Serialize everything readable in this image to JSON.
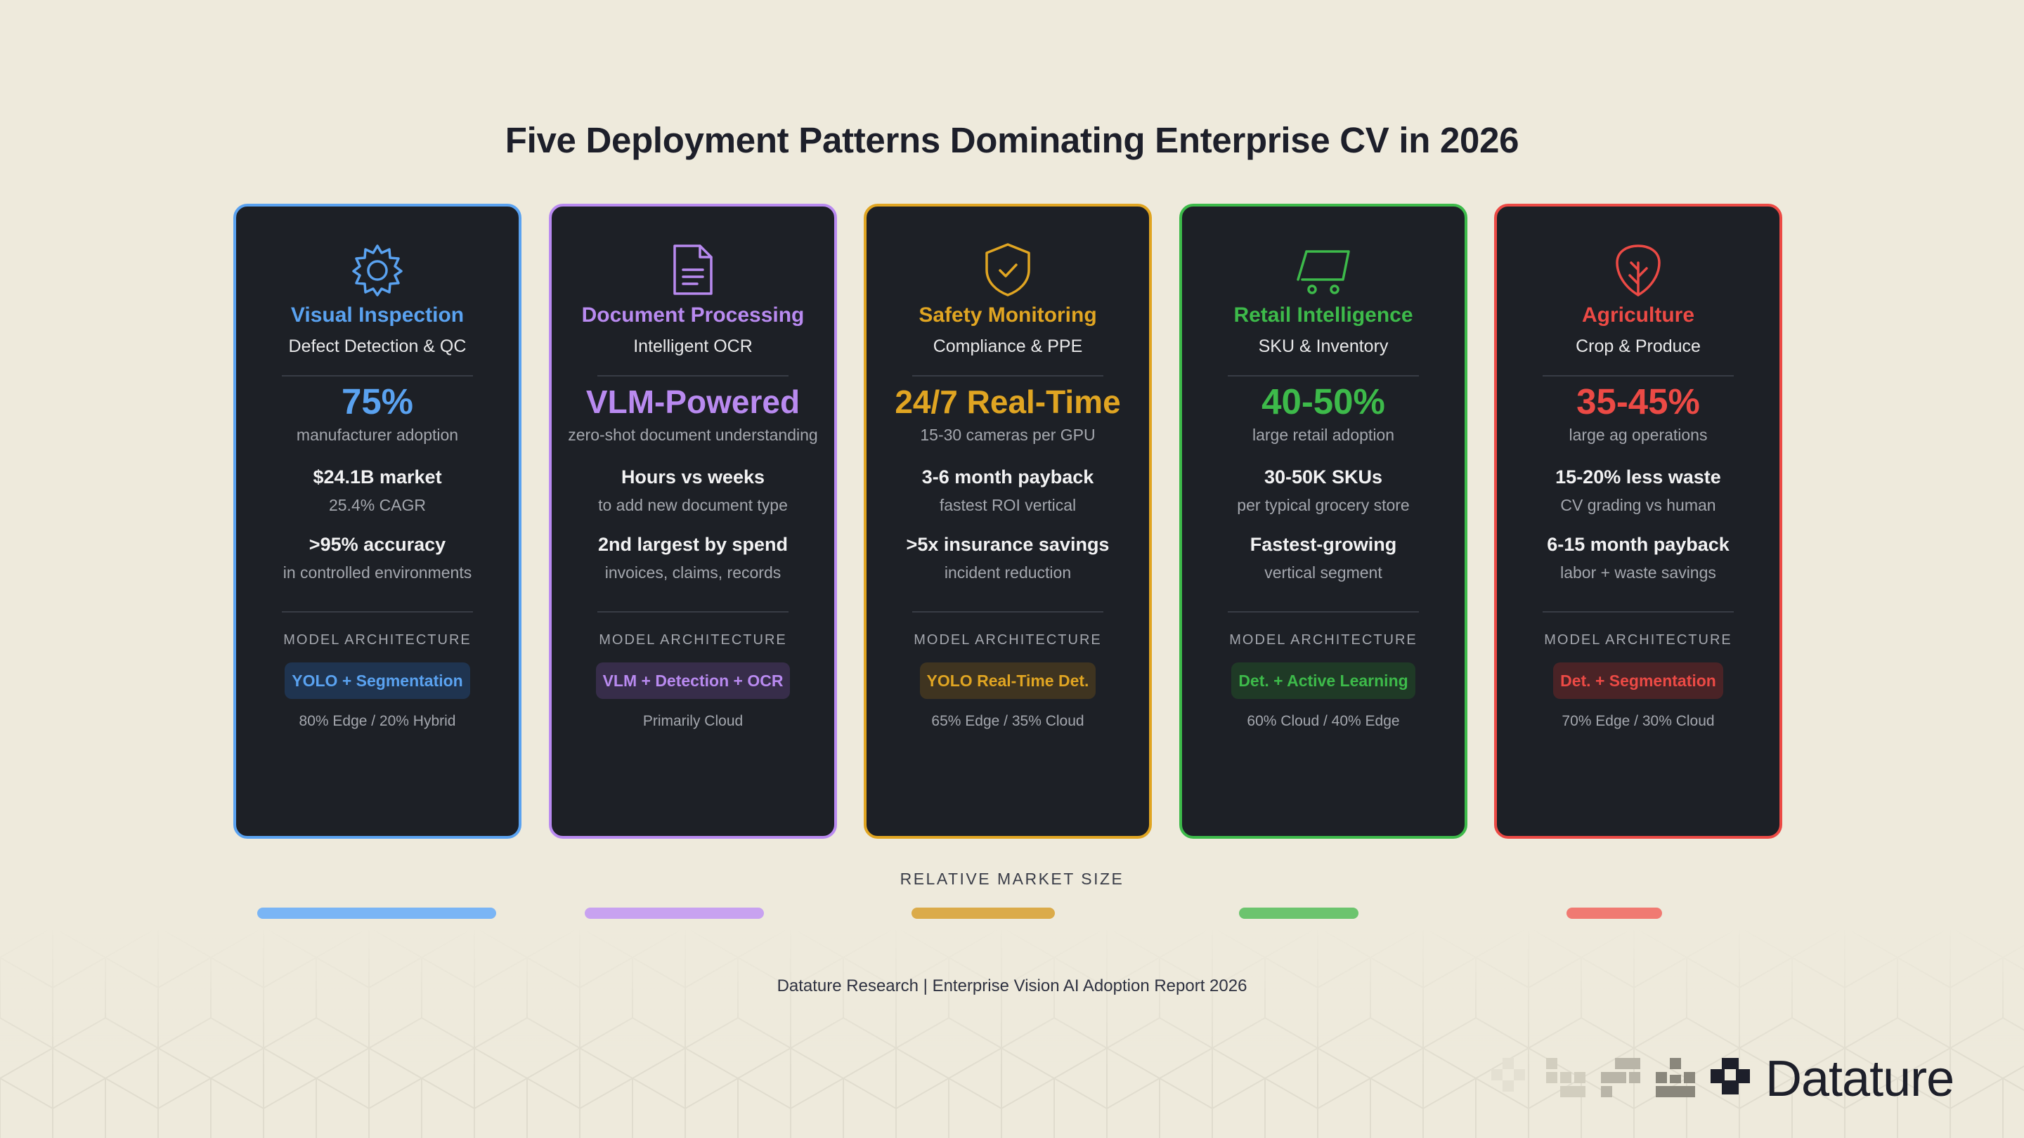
{
  "title": "Five Deployment Patterns Dominating Enterprise CV in 2026",
  "cards": [
    {
      "title": "Visual Inspection",
      "subtitle": "Defect Detection & QC",
      "big": "75%",
      "big_sub": "manufacturer adoption",
      "stat1": "$24.1B market",
      "stat1_sub": "25.4% CAGR",
      "stat2": ">95% accuracy",
      "stat2_sub": "in controlled environments",
      "arch_label": "MODEL ARCHITECTURE",
      "arch": "YOLO + Segmentation",
      "deploy": "80% Edge / 20% Hybrid",
      "icon": "gear-icon",
      "color": "#5aa2f0",
      "chip_bg": "#1f3450",
      "bar_color": "#7ab5f5",
      "market_size": 1.0
    },
    {
      "title": "Document Processing",
      "subtitle": "Intelligent OCR",
      "big": "VLM-Powered",
      "big_sub": "zero-shot document understanding",
      "stat1": "Hours vs weeks",
      "stat1_sub": "to add new document type",
      "stat2": "2nd largest by spend",
      "stat2_sub": "invoices, claims, records",
      "arch_label": "MODEL ARCHITECTURE",
      "arch": "VLM + Detection + OCR",
      "deploy": "Primarily Cloud",
      "icon": "document-icon",
      "color": "#b98af0",
      "chip_bg": "#372d4a",
      "bar_color": "#c8a2f0",
      "market_size": 0.75
    },
    {
      "title": "Safety Monitoring",
      "subtitle": "Compliance & PPE",
      "big": "24/7 Real-Time",
      "big_sub": "15-30 cameras per GPU",
      "stat1": "3-6 month payback",
      "stat1_sub": "fastest ROI vertical",
      "stat2": ">5x insurance savings",
      "stat2_sub": "incident reduction",
      "arch_label": "MODEL ARCHITECTURE",
      "arch": "YOLO Real-Time Det.",
      "deploy": "65% Edge / 35% Cloud",
      "icon": "shield-check-icon",
      "color": "#e0a522",
      "chip_bg": "#3f3420",
      "bar_color": "#dbab4a",
      "market_size": 0.6
    },
    {
      "title": "Retail Intelligence",
      "subtitle": "SKU & Inventory",
      "big": "40-50%",
      "big_sub": "large retail adoption",
      "stat1": "30-50K SKUs",
      "stat1_sub": "per typical grocery store",
      "stat2": "Fastest-growing",
      "stat2_sub": "vertical segment",
      "arch_label": "MODEL ARCHITECTURE",
      "arch": "Det. + Active Learning",
      "deploy": "60% Cloud / 40% Edge",
      "icon": "cart-icon",
      "color": "#3dba4a",
      "chip_bg": "#1f3a26",
      "bar_color": "#6cc46e",
      "market_size": 0.5
    },
    {
      "title": "Agriculture",
      "subtitle": "Crop & Produce",
      "big": "35-45%",
      "big_sub": "large ag operations",
      "stat1": "15-20% less waste",
      "stat1_sub": "CV grading vs human",
      "stat2": "6-15 month payback",
      "stat2_sub": "labor + waste savings",
      "arch_label": "MODEL ARCHITECTURE",
      "arch": "Det. + Segmentation",
      "deploy": "70% Edge / 30% Cloud",
      "icon": "leaf-icon",
      "color": "#ec4a45",
      "chip_bg": "#4a2326",
      "bar_color": "#f07a72",
      "market_size": 0.4
    }
  ],
  "market_label": "RELATIVE MARKET SIZE",
  "footer": "Datature Research | Enterprise Vision AI Adoption Report 2026",
  "brand": "Datature"
}
